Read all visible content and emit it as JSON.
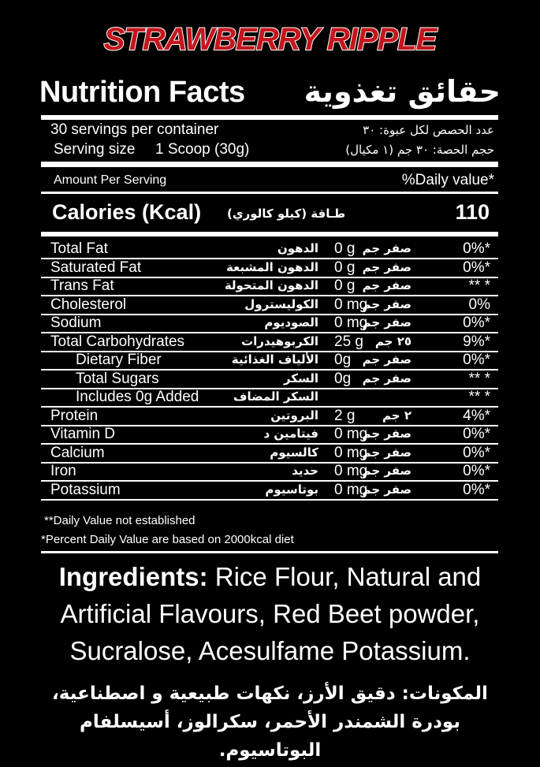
{
  "product_title": "STRAWBERRY RIPPLE",
  "header": {
    "title_en": "Nutrition Facts",
    "title_ar": "حقائق تغذوية"
  },
  "servings": {
    "per_container_en": "30 servings per container",
    "per_container_ar": "عدد الحصص لكل عبوة: ٣٠",
    "size_label_en": "Serving size",
    "size_value_en": "1 Scoop (30g)",
    "size_ar": "حجم الحصة: ٣٠ جم (١ مكيال)"
  },
  "amount_per_serving": "Amount Per Serving",
  "daily_value_header": "%Daily value*",
  "calories": {
    "label_en": "Calories (Kcal)",
    "label_ar": "طـاقة (كيلو كالوري)",
    "value": "110"
  },
  "nutrients": [
    {
      "en": "Total Fat",
      "ar": "الدهون",
      "amount": "0 g",
      "amount_ar": "صفر جم",
      "dv": "0%*",
      "indent": false
    },
    {
      "en": "Saturated Fat",
      "ar": "الدهون المشبعة",
      "amount": "0 g",
      "amount_ar": "صفر جم",
      "dv": "0%*",
      "indent": false
    },
    {
      "en": "Trans Fat",
      "ar": "الدهون المتحولة",
      "amount": "0 g",
      "amount_ar": "صفر جم",
      "dv": "** *",
      "indent": false
    },
    {
      "en": "Cholesterol",
      "ar": "الكوليسترول",
      "amount": "0 mg",
      "amount_ar": "صفر جم",
      "dv": "0%",
      "indent": false
    },
    {
      "en": "Sodium",
      "ar": "الصوديوم",
      "amount": "0 mg",
      "amount_ar": "صفر جم",
      "dv": "0%*",
      "indent": false
    },
    {
      "en": "Total Carbohydrates",
      "ar": "الكربوهيدرات",
      "amount": "25 g",
      "amount_ar": "٢٥ جم",
      "dv": "9%*",
      "indent": false
    },
    {
      "en": "Dietary Fiber",
      "ar": "الألياف الغذائية",
      "amount": "0g",
      "amount_ar": "صفر جم",
      "dv": "0%*",
      "indent": true
    },
    {
      "en": "Total Sugars",
      "ar": "السكر",
      "amount": "0g",
      "amount_ar": "صفر جم",
      "dv": "** *",
      "indent": true
    },
    {
      "en": "Includes 0g Added",
      "ar": "السكر المضاف",
      "amount": "",
      "amount_ar": "",
      "dv": "** *",
      "indent": true
    },
    {
      "en": "Protein",
      "ar": "البروتين",
      "amount": "2 g",
      "amount_ar": "٢ جم",
      "dv": "4%*",
      "indent": false
    },
    {
      "en": "Vitamin D",
      "ar": "فيتامين د",
      "amount": "0 mg",
      "amount_ar": "صفر جم",
      "dv": "0%*",
      "indent": false
    },
    {
      "en": "Calcium",
      "ar": "كالسيوم",
      "amount": "0 mg",
      "amount_ar": "صفر جم",
      "dv": "0%*",
      "indent": false
    },
    {
      "en": "Iron",
      "ar": "حديد",
      "amount": "0 mg",
      "amount_ar": "صفر جم",
      "dv": "0%*",
      "indent": false
    },
    {
      "en": "Potassium",
      "ar": "بوتاسيوم",
      "amount": "0 mg",
      "amount_ar": "صفر جم",
      "dv": "0%*",
      "indent": false
    }
  ],
  "footnotes": [
    "**Daily Value not established",
    "*Percent Daily Value are based on 2000kcal diet"
  ],
  "ingredients": {
    "label": "Ingredients:",
    "text_en": "Rice Flour, Natural and Artificial Flavours, Red Beet powder, Sucralose,  Acesulfame Potassium.",
    "text_ar": "المكونات: دقيق الأرز، نكهات طبيعية و اصطناعية، بودرة الشمندر الأحمر، سكرالوز، أسيسلفام البوتاسيوم."
  },
  "colors": {
    "background": "#000000",
    "title_red": "#c4161c",
    "text": "#ffffff"
  }
}
